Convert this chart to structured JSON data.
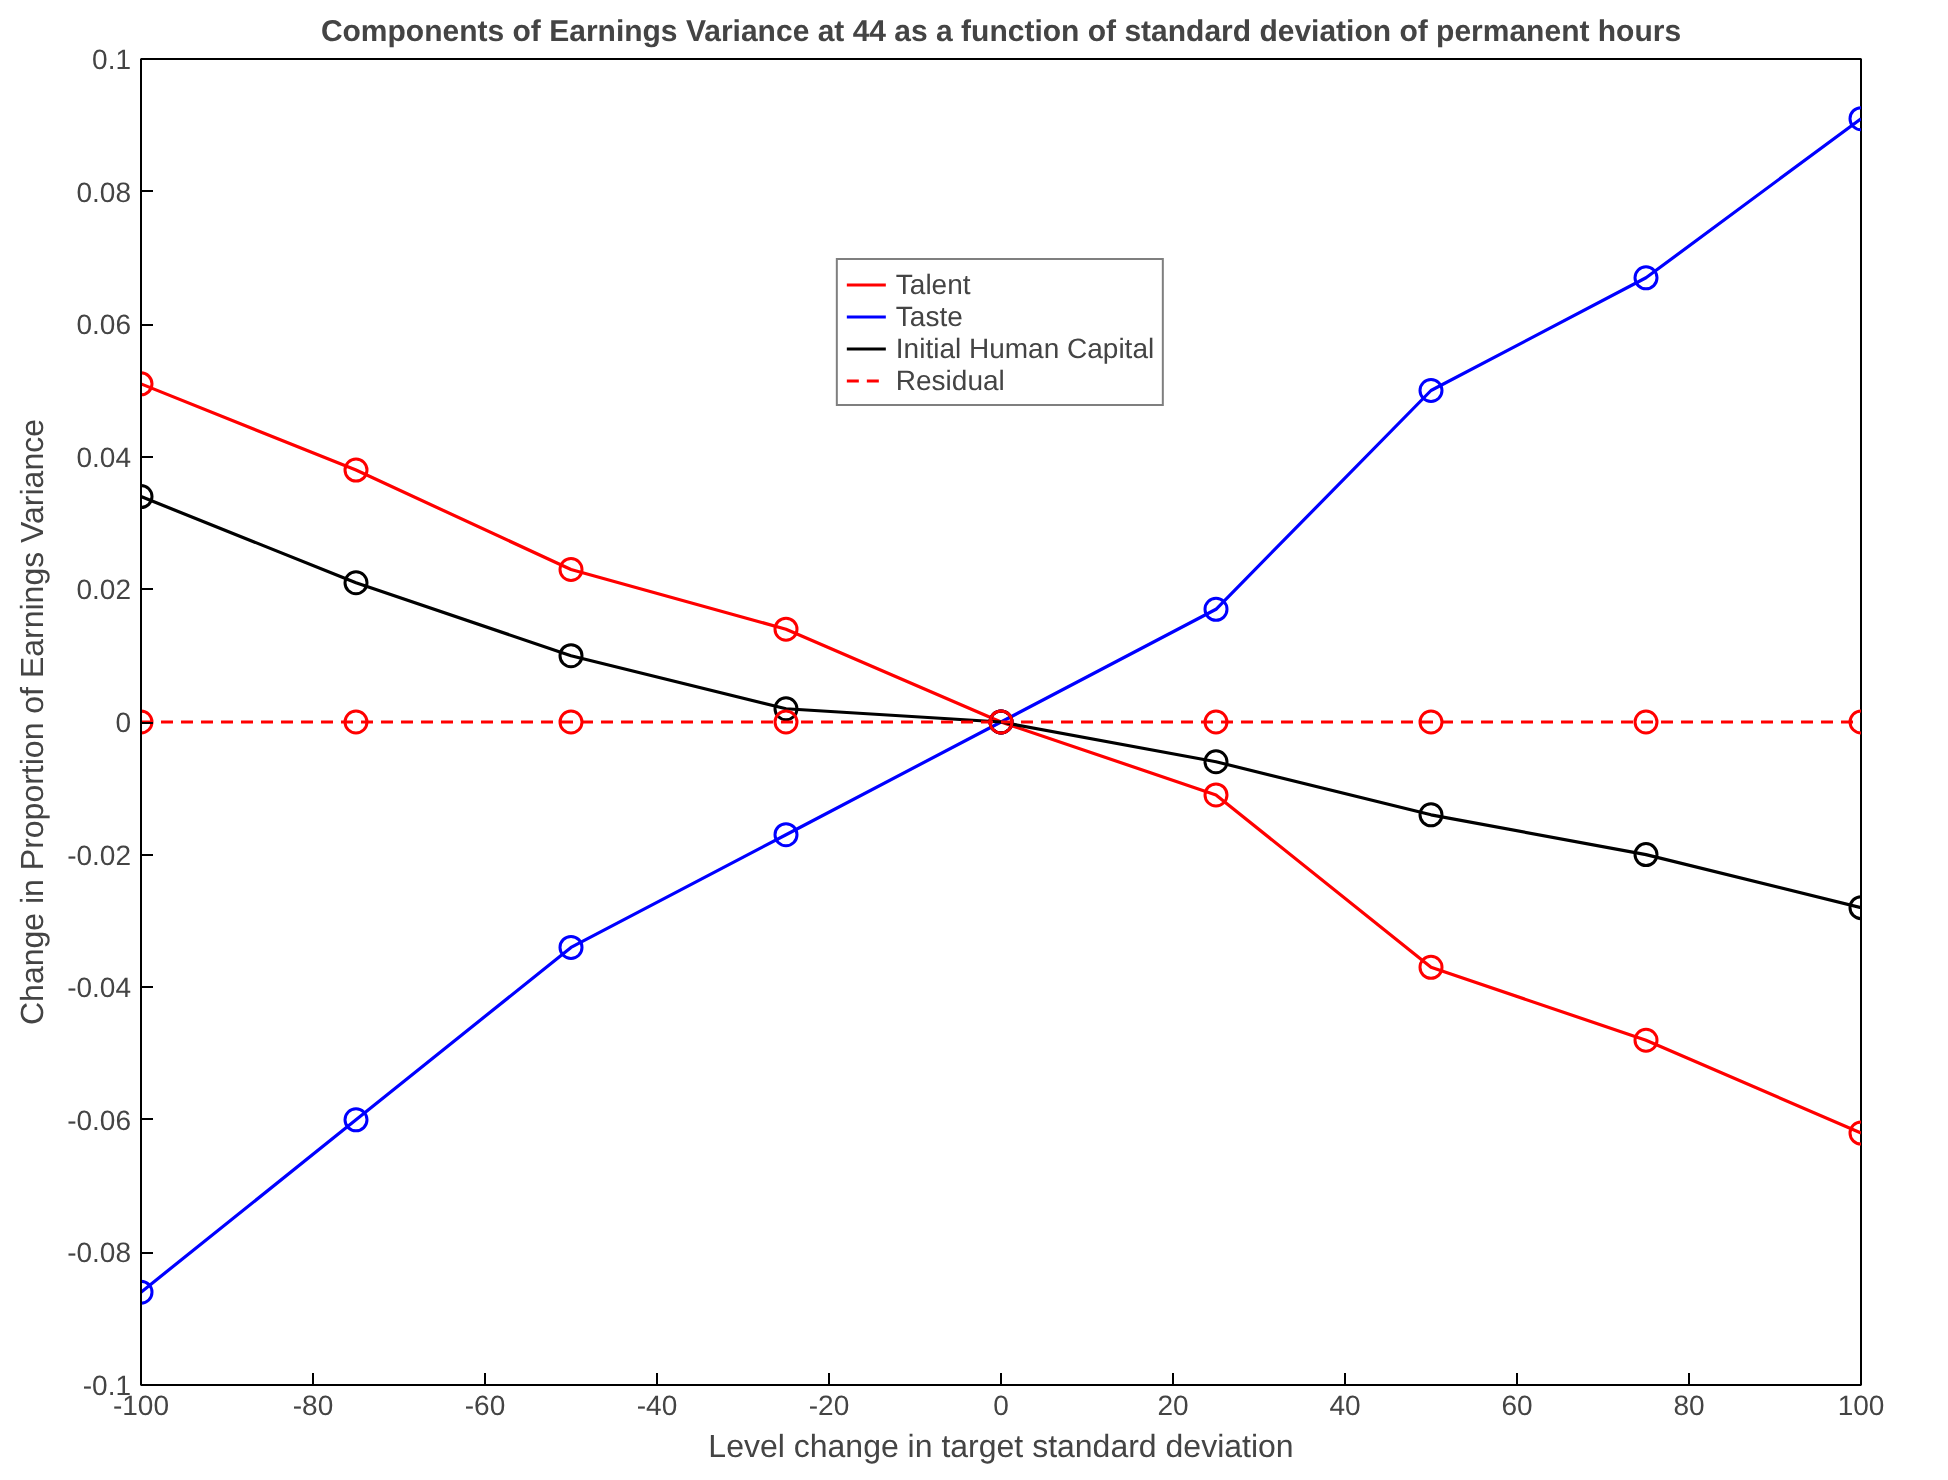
{
  "chart_data": {
    "type": "line",
    "title": "Components of Earnings Variance at 44 as a function of standard deviation of permanent hours",
    "xlabel": "Level change in target standard deviation",
    "ylabel": "Change in Proportion of Earnings Variance",
    "x": [
      -100,
      -75,
      -50,
      -25,
      0,
      25,
      50,
      75,
      100
    ],
    "series": [
      {
        "name": "Talent",
        "color": "#ff0000",
        "values": [
          0.051,
          0.038,
          0.023,
          0.014,
          0,
          -0.011,
          -0.037,
          -0.048,
          -0.062
        ]
      },
      {
        "name": "Taste",
        "color": "#0000ff",
        "values": [
          -0.086,
          -0.06,
          -0.034,
          -0.017,
          0,
          0.017,
          0.05,
          0.067,
          0.091
        ]
      },
      {
        "name": "Initial Human Capital",
        "color": "#000000",
        "values": [
          0.034,
          0.021,
          0.01,
          0.002,
          0,
          -0.006,
          -0.014,
          -0.02,
          -0.028
        ]
      },
      {
        "name": "Residual",
        "color": "#ff0000",
        "line_style": "dashed",
        "values": [
          0,
          0,
          0,
          0,
          0,
          0,
          0,
          0,
          0
        ]
      }
    ],
    "xlim": [
      -100,
      100
    ],
    "xticks": [
      -100,
      -80,
      -60,
      -40,
      -20,
      0,
      20,
      40,
      60,
      80,
      100
    ],
    "ylim": [
      -0.1,
      0.1
    ],
    "yticks": [
      -0.1,
      -0.08,
      -0.06,
      -0.04,
      -0.02,
      0,
      0.02,
      0.04,
      0.06,
      0.08,
      0.1
    ],
    "marker": "circle",
    "line_style": "solid",
    "grid": false,
    "legend": "top"
  }
}
